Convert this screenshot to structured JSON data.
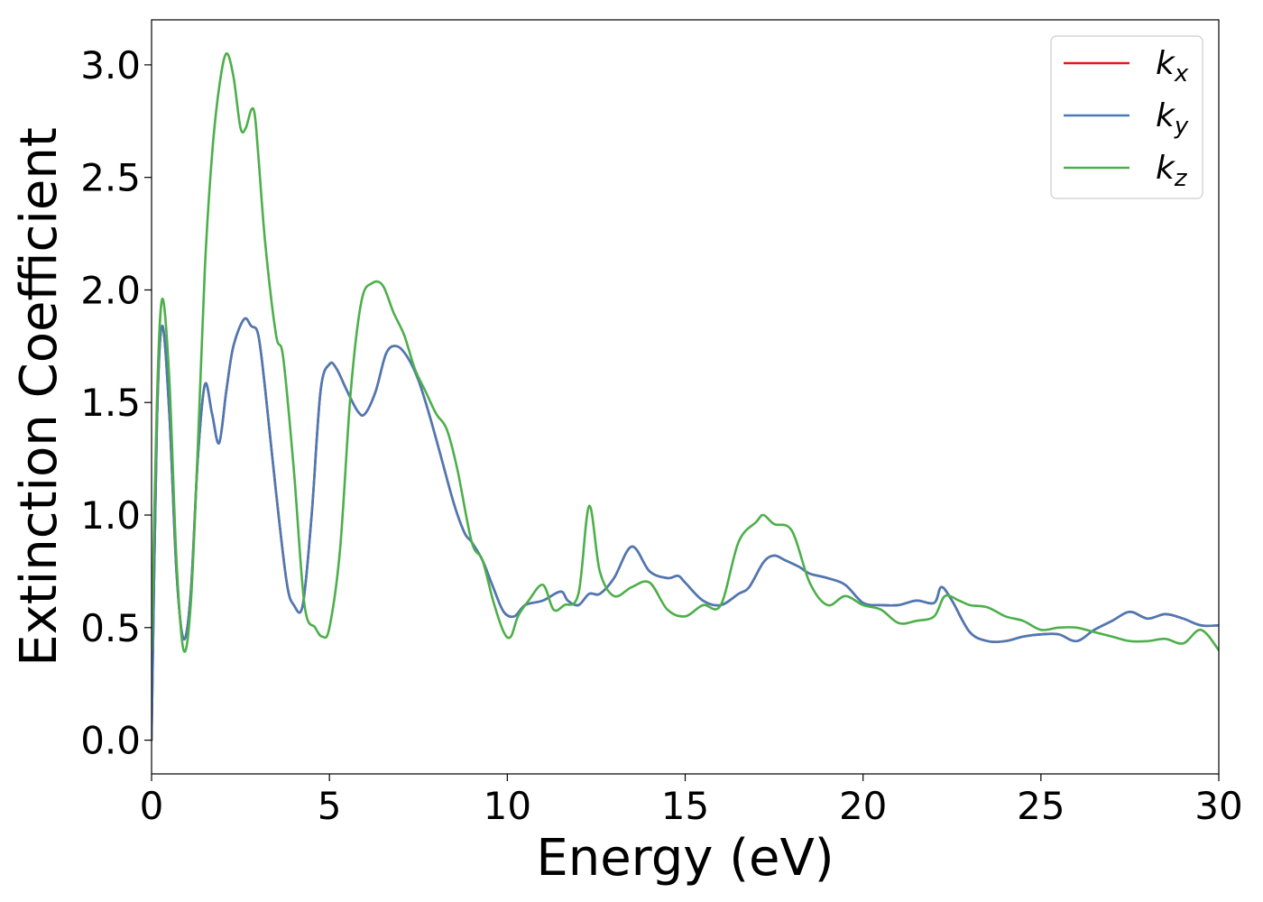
{
  "chart_data": {
    "type": "line",
    "xlabel": "Energy (eV)",
    "ylabel": "Extinction Coefficient",
    "xlim": [
      0,
      30
    ],
    "ylim": [
      -0.15,
      3.2
    ],
    "xticks": [
      "0",
      "5",
      "10",
      "15",
      "20",
      "25",
      "30"
    ],
    "yticks": [
      "0.0",
      "0.5",
      "1.0",
      "1.5",
      "2.0",
      "2.5",
      "3.0"
    ],
    "grid": false,
    "legend_position": "top-right",
    "colors": {
      "kx": "#e41a1c",
      "ky": "#4a7ab5",
      "kz": "#4daf4a"
    },
    "series": [
      {
        "name": "k_x",
        "legend_base": "k",
        "legend_sub": "x",
        "color": "#e41a1c",
        "x": [
          0,
          0.15,
          0.3,
          0.5,
          0.7,
          0.9,
          1.1,
          1.3,
          1.5,
          1.7,
          1.9,
          2.1,
          2.3,
          2.6,
          2.8,
          3.0,
          3.2,
          3.5,
          3.8,
          4.0,
          4.25,
          4.5,
          4.75,
          5.0,
          5.2,
          5.5,
          5.8,
          6.0,
          6.3,
          6.6,
          6.9,
          7.2,
          7.5,
          7.8,
          8.1,
          8.5,
          8.8,
          9.0,
          9.3,
          9.6,
          9.9,
          10.2,
          10.5,
          11.0,
          11.5,
          11.7,
          12.0,
          12.3,
          12.6,
          13.0,
          13.5,
          14.0,
          14.5,
          14.8,
          15.0,
          15.5,
          16.0,
          16.5,
          16.8,
          17.2,
          17.5,
          17.8,
          18.2,
          18.5,
          19.0,
          19.5,
          20.0,
          20.5,
          21.0,
          21.5,
          22.0,
          22.2,
          22.5,
          23.0,
          23.5,
          24.0,
          24.5,
          25.0,
          25.5,
          26.0,
          26.5,
          27.0,
          27.5,
          28.0,
          28.5,
          29.0,
          29.5,
          30.0
        ],
        "values": [
          0.0,
          1.4,
          1.84,
          1.45,
          0.75,
          0.45,
          0.65,
          1.25,
          1.58,
          1.45,
          1.32,
          1.55,
          1.75,
          1.87,
          1.84,
          1.8,
          1.55,
          1.1,
          0.7,
          0.6,
          0.6,
          1.0,
          1.55,
          1.67,
          1.65,
          1.55,
          1.46,
          1.45,
          1.55,
          1.72,
          1.75,
          1.7,
          1.6,
          1.45,
          1.28,
          1.05,
          0.92,
          0.88,
          0.8,
          0.68,
          0.57,
          0.55,
          0.6,
          0.62,
          0.66,
          0.62,
          0.6,
          0.65,
          0.65,
          0.72,
          0.86,
          0.75,
          0.72,
          0.73,
          0.7,
          0.62,
          0.6,
          0.65,
          0.68,
          0.79,
          0.82,
          0.8,
          0.77,
          0.74,
          0.72,
          0.69,
          0.61,
          0.6,
          0.6,
          0.62,
          0.61,
          0.68,
          0.62,
          0.48,
          0.44,
          0.44,
          0.46,
          0.47,
          0.47,
          0.44,
          0.49,
          0.53,
          0.57,
          0.54,
          0.56,
          0.54,
          0.51,
          0.51
        ]
      },
      {
        "name": "k_y",
        "legend_base": "k",
        "legend_sub": "y",
        "color": "#4a7ab5",
        "x": [
          0,
          0.15,
          0.3,
          0.5,
          0.7,
          0.9,
          1.1,
          1.3,
          1.5,
          1.7,
          1.9,
          2.1,
          2.3,
          2.6,
          2.8,
          3.0,
          3.2,
          3.5,
          3.8,
          4.0,
          4.25,
          4.5,
          4.75,
          5.0,
          5.2,
          5.5,
          5.8,
          6.0,
          6.3,
          6.6,
          6.9,
          7.2,
          7.5,
          7.8,
          8.1,
          8.5,
          8.8,
          9.0,
          9.3,
          9.6,
          9.9,
          10.2,
          10.5,
          11.0,
          11.5,
          11.7,
          12.0,
          12.3,
          12.6,
          13.0,
          13.5,
          14.0,
          14.5,
          14.8,
          15.0,
          15.5,
          16.0,
          16.5,
          16.8,
          17.2,
          17.5,
          17.8,
          18.2,
          18.5,
          19.0,
          19.5,
          20.0,
          20.5,
          21.0,
          21.5,
          22.0,
          22.2,
          22.5,
          23.0,
          23.5,
          24.0,
          24.5,
          25.0,
          25.5,
          26.0,
          26.5,
          27.0,
          27.5,
          28.0,
          28.5,
          29.0,
          29.5,
          30.0
        ],
        "values": [
          0.0,
          1.4,
          1.84,
          1.45,
          0.75,
          0.45,
          0.65,
          1.25,
          1.58,
          1.45,
          1.32,
          1.55,
          1.75,
          1.87,
          1.84,
          1.8,
          1.55,
          1.1,
          0.7,
          0.6,
          0.6,
          1.0,
          1.55,
          1.67,
          1.65,
          1.55,
          1.46,
          1.45,
          1.55,
          1.72,
          1.75,
          1.7,
          1.6,
          1.45,
          1.28,
          1.05,
          0.92,
          0.88,
          0.8,
          0.68,
          0.57,
          0.55,
          0.6,
          0.62,
          0.66,
          0.62,
          0.6,
          0.65,
          0.65,
          0.72,
          0.86,
          0.75,
          0.72,
          0.73,
          0.7,
          0.62,
          0.6,
          0.65,
          0.68,
          0.79,
          0.82,
          0.8,
          0.77,
          0.74,
          0.72,
          0.69,
          0.61,
          0.6,
          0.6,
          0.62,
          0.61,
          0.68,
          0.62,
          0.48,
          0.44,
          0.44,
          0.46,
          0.47,
          0.47,
          0.44,
          0.49,
          0.53,
          0.57,
          0.54,
          0.56,
          0.54,
          0.51,
          0.51
        ]
      },
      {
        "name": "k_z",
        "legend_base": "k",
        "legend_sub": "z",
        "color": "#4daf4a",
        "x": [
          0,
          0.15,
          0.3,
          0.5,
          0.7,
          0.9,
          1.1,
          1.3,
          1.5,
          1.7,
          1.9,
          2.1,
          2.3,
          2.5,
          2.65,
          2.8,
          2.9,
          3.0,
          3.2,
          3.5,
          3.7,
          4.0,
          4.3,
          4.6,
          4.8,
          5.0,
          5.3,
          5.6,
          5.9,
          6.2,
          6.5,
          6.8,
          7.1,
          7.4,
          7.7,
          8.0,
          8.3,
          8.6,
          9.0,
          9.3,
          9.6,
          9.9,
          10.1,
          10.3,
          10.6,
          11.0,
          11.3,
          11.6,
          12.0,
          12.3,
          12.6,
          13.0,
          13.5,
          14.0,
          14.5,
          15.0,
          15.5,
          16.0,
          16.5,
          17.0,
          17.2,
          17.5,
          18.0,
          18.5,
          19.0,
          19.5,
          20.0,
          20.5,
          21.0,
          21.5,
          22.0,
          22.3,
          22.7,
          23.0,
          23.5,
          24.0,
          24.5,
          25.0,
          25.5,
          26.0,
          26.5,
          27.0,
          27.5,
          28.0,
          28.5,
          29.0,
          29.5,
          30.0
        ],
        "values": [
          0.4,
          1.5,
          1.96,
          1.6,
          0.8,
          0.4,
          0.6,
          1.3,
          2.1,
          2.6,
          2.9,
          3.05,
          2.95,
          2.72,
          2.72,
          2.8,
          2.78,
          2.6,
          2.2,
          1.8,
          1.7,
          1.2,
          0.6,
          0.5,
          0.46,
          0.5,
          0.85,
          1.55,
          1.95,
          2.03,
          2.02,
          1.9,
          1.8,
          1.65,
          1.55,
          1.45,
          1.38,
          1.2,
          0.88,
          0.8,
          0.62,
          0.48,
          0.46,
          0.55,
          0.62,
          0.69,
          0.58,
          0.6,
          0.65,
          1.04,
          0.75,
          0.64,
          0.68,
          0.7,
          0.58,
          0.55,
          0.6,
          0.6,
          0.88,
          0.97,
          1.0,
          0.96,
          0.93,
          0.7,
          0.6,
          0.64,
          0.6,
          0.58,
          0.52,
          0.53,
          0.55,
          0.64,
          0.62,
          0.6,
          0.59,
          0.55,
          0.53,
          0.49,
          0.5,
          0.5,
          0.48,
          0.46,
          0.44,
          0.44,
          0.45,
          0.43,
          0.49,
          0.4
        ]
      }
    ]
  }
}
